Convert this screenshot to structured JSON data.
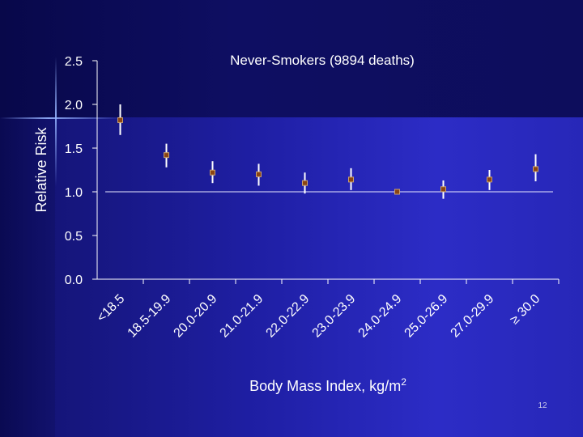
{
  "slide_number": "12",
  "chart_data": {
    "type": "scatter",
    "title": "Never-Smokers (9894 deaths)",
    "xlabel": "Body Mass Index, kg/m",
    "xlabel_superscript": "2",
    "ylabel": "Relative Risk",
    "categories": [
      "<18.5",
      "18.5-19.9",
      "20.0-20.9",
      "21.0-21.9",
      "22.0-22.9",
      "23.0-23.9",
      "24.0-24.9",
      "25.0-26.9",
      "27.0-29.9",
      "≥ 30.0"
    ],
    "series": [
      {
        "values": [
          1.82,
          1.42,
          1.22,
          1.2,
          1.1,
          1.14,
          1.0,
          1.03,
          1.14,
          1.26
        ],
        "lower": [
          1.65,
          1.28,
          1.1,
          1.07,
          0.98,
          1.02,
          1.0,
          0.92,
          1.02,
          1.12
        ],
        "upper": [
          2.0,
          1.55,
          1.35,
          1.32,
          1.22,
          1.27,
          1.0,
          1.13,
          1.25,
          1.43
        ]
      }
    ],
    "reference_line": 1.0,
    "ylim": [
      0,
      2.5
    ],
    "yticks": [
      "0.0",
      "0.5",
      "1.0",
      "1.5",
      "2.0",
      "2.5"
    ],
    "grid": false,
    "colors": {
      "marker": "#8b4513",
      "marker_edge": "#c8a070",
      "error_bar": "#ffffff",
      "axis": "#ffffff"
    }
  }
}
